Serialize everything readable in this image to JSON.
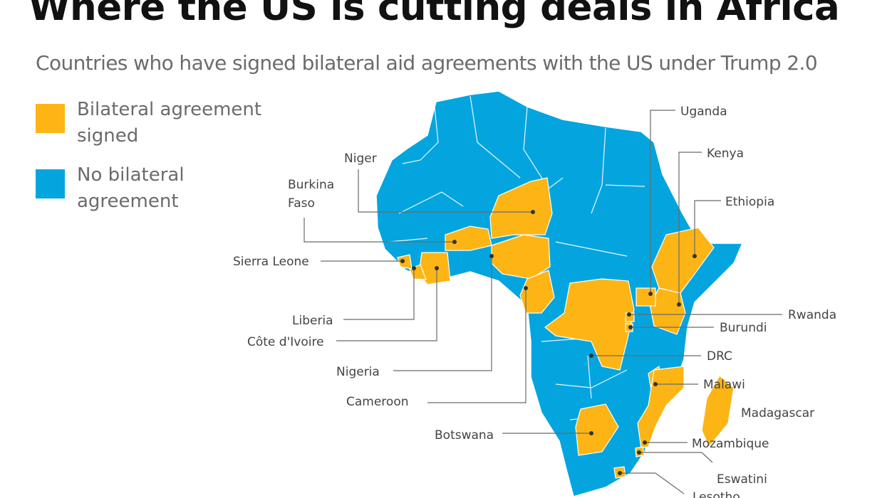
{
  "title": "Where the US is cutting deals in Africa",
  "subtitle": "Countries who have signed bilateral aid agreements with the US under Trump 2.0",
  "colors": {
    "signed": "#FDB515",
    "not_signed": "#04A5DF",
    "border": "#ffffff"
  },
  "legend": [
    {
      "label": "Bilateral agreement signed",
      "color": "#FDB515"
    },
    {
      "label": "No bilateral agreement",
      "color": "#04A5DF"
    }
  ],
  "countries_signed": {
    "niger": "Niger",
    "burkina": "Burkina Faso",
    "sierra_leone": "Sierra Leone",
    "liberia": "Liberia",
    "cote": "Côte d'Ivoire",
    "nigeria": "Nigeria",
    "cameroon": "Cameroon",
    "botswana": "Botswana",
    "uganda": "Uganda",
    "kenya": "Kenya",
    "ethiopia": "Ethiopia",
    "rwanda": "Rwanda",
    "burundi": "Burundi",
    "drc": "DRC",
    "malawi": "Malawi",
    "madagascar": "Madagascar",
    "mozambique": "Mozambique",
    "eswatini": "Eswatini",
    "lesotho": "Lesotho"
  }
}
